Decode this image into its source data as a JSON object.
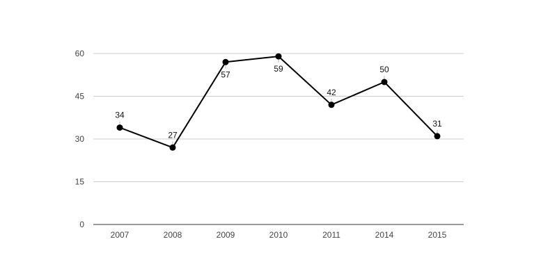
{
  "chart_data": {
    "type": "line",
    "title": "",
    "xlabel": "",
    "ylabel": "",
    "categories": [
      "2007",
      "2008",
      "2009",
      "2010",
      "2011",
      "2014",
      "2015"
    ],
    "values": [
      34,
      27,
      57,
      59,
      42,
      50,
      31
    ],
    "data_labels": [
      "34",
      "27",
      "57",
      "59",
      "42",
      "50",
      "31"
    ],
    "label_position": [
      "above",
      "above",
      "below",
      "below",
      "above",
      "above",
      "above"
    ],
    "ylim": [
      0,
      60
    ],
    "yticks": [
      "0",
      "15",
      "30",
      "45",
      "60"
    ],
    "grid": true,
    "legend": "none",
    "colors": {
      "line": "#000000",
      "grid": "#cccccc",
      "axis": "#333333",
      "leader": "#bbbbbb"
    }
  }
}
